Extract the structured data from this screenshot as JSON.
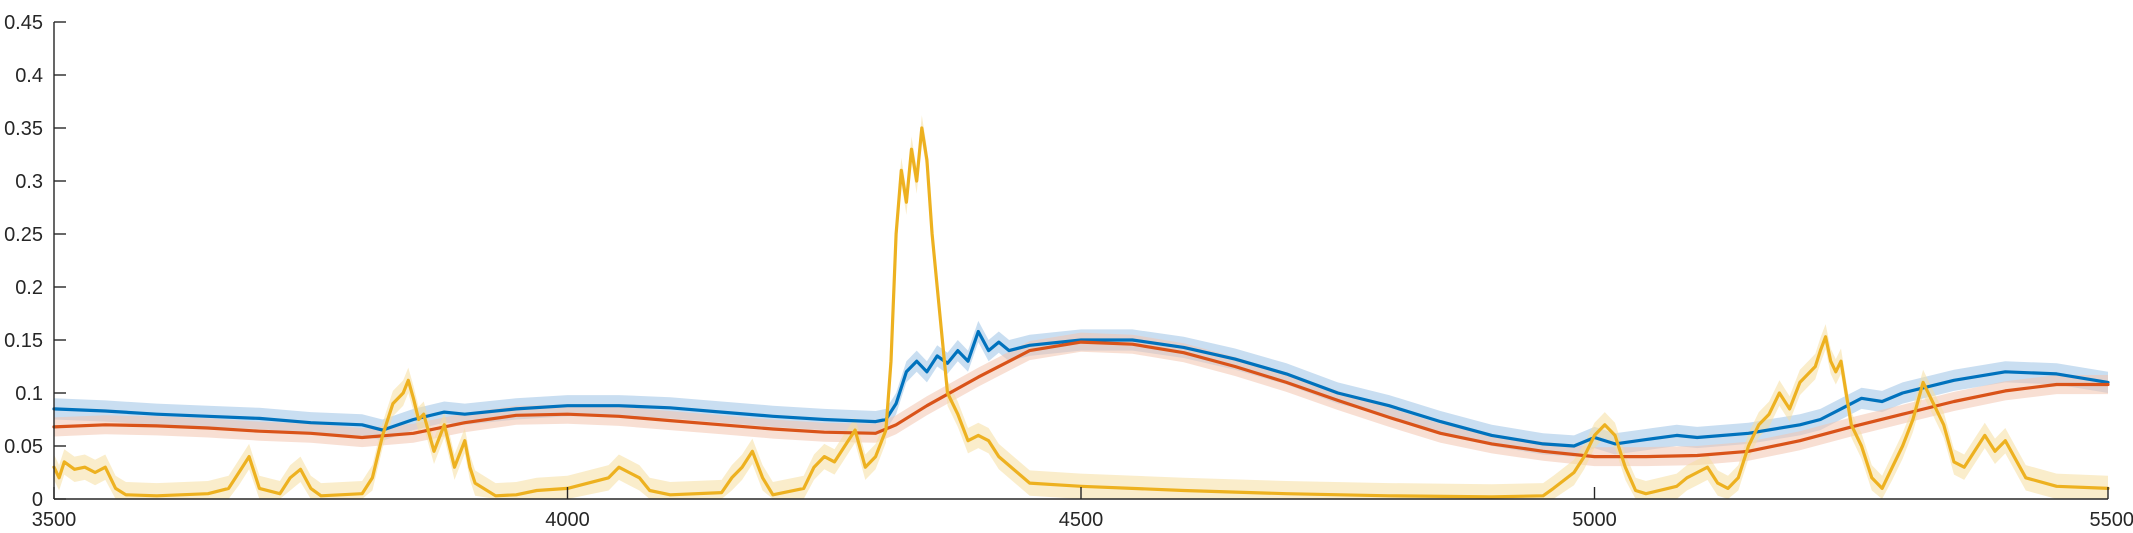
{
  "chart_data": {
    "type": "line",
    "title": "",
    "xlabel": "",
    "ylabel": "",
    "xlim": [
      3500,
      5500
    ],
    "ylim": [
      0,
      0.45
    ],
    "grid": false,
    "legend": "none",
    "x_ticks": [
      "3500",
      "4000",
      "4500",
      "5000",
      "5500"
    ],
    "y_ticks": [
      "0",
      "0.05",
      "0.1",
      "0.15",
      "0.2",
      "0.25",
      "0.3",
      "0.35",
      "0.4",
      "0.45"
    ],
    "series": [
      {
        "color": "#0072BD",
        "band_color": "#9dc3e6",
        "band_halfwidth": 0.01,
        "x": [
          3500,
          3550,
          3600,
          3650,
          3700,
          3750,
          3800,
          3820,
          3850,
          3880,
          3900,
          3950,
          4000,
          4050,
          4100,
          4150,
          4200,
          4250,
          4300,
          4310,
          4320,
          4330,
          4340,
          4350,
          4360,
          4370,
          4380,
          4390,
          4400,
          4410,
          4420,
          4430,
          4450,
          4500,
          4550,
          4600,
          4650,
          4700,
          4750,
          4800,
          4850,
          4900,
          4950,
          4980,
          5000,
          5020,
          5050,
          5080,
          5100,
          5150,
          5200,
          5220,
          5240,
          5260,
          5280,
          5300,
          5350,
          5400,
          5450,
          5500
        ],
        "y": [
          0.085,
          0.083,
          0.08,
          0.078,
          0.076,
          0.072,
          0.07,
          0.065,
          0.075,
          0.082,
          0.08,
          0.085,
          0.088,
          0.088,
          0.086,
          0.082,
          0.078,
          0.075,
          0.073,
          0.075,
          0.09,
          0.12,
          0.13,
          0.12,
          0.135,
          0.128,
          0.14,
          0.13,
          0.158,
          0.14,
          0.148,
          0.14,
          0.145,
          0.15,
          0.15,
          0.143,
          0.132,
          0.118,
          0.1,
          0.088,
          0.073,
          0.06,
          0.052,
          0.05,
          0.058,
          0.052,
          0.056,
          0.06,
          0.058,
          0.062,
          0.07,
          0.075,
          0.085,
          0.095,
          0.092,
          0.1,
          0.112,
          0.12,
          0.118,
          0.11
        ]
      },
      {
        "color": "#D95319",
        "band_color": "#f2c4ae",
        "band_halfwidth": 0.009,
        "x": [
          3500,
          3550,
          3600,
          3650,
          3700,
          3750,
          3800,
          3850,
          3900,
          3950,
          4000,
          4050,
          4100,
          4150,
          4200,
          4250,
          4300,
          4320,
          4350,
          4400,
          4450,
          4500,
          4550,
          4600,
          4650,
          4700,
          4750,
          4800,
          4850,
          4900,
          4950,
          5000,
          5050,
          5100,
          5150,
          5200,
          5250,
          5300,
          5350,
          5400,
          5450,
          5500
        ],
        "y": [
          0.068,
          0.07,
          0.069,
          0.067,
          0.064,
          0.062,
          0.058,
          0.062,
          0.072,
          0.079,
          0.08,
          0.078,
          0.074,
          0.07,
          0.066,
          0.063,
          0.062,
          0.07,
          0.088,
          0.115,
          0.14,
          0.148,
          0.146,
          0.138,
          0.125,
          0.11,
          0.093,
          0.077,
          0.062,
          0.052,
          0.045,
          0.04,
          0.04,
          0.041,
          0.045,
          0.055,
          0.068,
          0.08,
          0.092,
          0.102,
          0.108,
          0.108
        ]
      },
      {
        "color": "#EDB120",
        "band_color": "#f6dfa0",
        "band_halfwidth": 0.012,
        "x": [
          3500,
          3505,
          3510,
          3520,
          3530,
          3540,
          3550,
          3560,
          3570,
          3600,
          3650,
          3670,
          3680,
          3690,
          3700,
          3720,
          3730,
          3740,
          3750,
          3760,
          3800,
          3810,
          3820,
          3830,
          3840,
          3845,
          3850,
          3855,
          3860,
          3870,
          3880,
          3890,
          3900,
          3905,
          3910,
          3930,
          3950,
          3970,
          4000,
          4040,
          4050,
          4060,
          4070,
          4080,
          4100,
          4150,
          4160,
          4170,
          4180,
          4190,
          4200,
          4230,
          4240,
          4250,
          4260,
          4270,
          4280,
          4290,
          4300,
          4310,
          4315,
          4320,
          4325,
          4330,
          4335,
          4340,
          4345,
          4350,
          4355,
          4360,
          4370,
          4380,
          4390,
          4400,
          4410,
          4420,
          4450,
          4500,
          4600,
          4700,
          4800,
          4900,
          4950,
          4960,
          4980,
          4990,
          5000,
          5010,
          5020,
          5030,
          5040,
          5050,
          5080,
          5090,
          5100,
          5110,
          5120,
          5130,
          5140,
          5150,
          5160,
          5170,
          5180,
          5190,
          5200,
          5210,
          5215,
          5220,
          5225,
          5230,
          5235,
          5240,
          5245,
          5250,
          5260,
          5270,
          5280,
          5290,
          5300,
          5310,
          5320,
          5330,
          5340,
          5350,
          5360,
          5370,
          5380,
          5390,
          5400,
          5420,
          5450,
          5500
        ],
        "y": [
          0.03,
          0.02,
          0.035,
          0.028,
          0.03,
          0.025,
          0.03,
          0.01,
          0.004,
          0.003,
          0.005,
          0.01,
          0.025,
          0.04,
          0.01,
          0.005,
          0.02,
          0.028,
          0.01,
          0.003,
          0.005,
          0.02,
          0.06,
          0.09,
          0.1,
          0.112,
          0.095,
          0.075,
          0.08,
          0.045,
          0.07,
          0.03,
          0.055,
          0.03,
          0.015,
          0.003,
          0.004,
          0.008,
          0.01,
          0.02,
          0.03,
          0.025,
          0.02,
          0.008,
          0.004,
          0.006,
          0.02,
          0.03,
          0.045,
          0.02,
          0.004,
          0.01,
          0.03,
          0.04,
          0.035,
          0.05,
          0.065,
          0.03,
          0.04,
          0.065,
          0.13,
          0.25,
          0.31,
          0.28,
          0.33,
          0.3,
          0.35,
          0.32,
          0.25,
          0.2,
          0.1,
          0.08,
          0.055,
          0.06,
          0.055,
          0.04,
          0.015,
          0.012,
          0.008,
          0.005,
          0.003,
          0.002,
          0.003,
          0.01,
          0.025,
          0.04,
          0.06,
          0.07,
          0.06,
          0.03,
          0.008,
          0.005,
          0.012,
          0.02,
          0.025,
          0.03,
          0.015,
          0.01,
          0.02,
          0.05,
          0.07,
          0.08,
          0.1,
          0.085,
          0.11,
          0.12,
          0.125,
          0.14,
          0.153,
          0.13,
          0.12,
          0.13,
          0.1,
          0.07,
          0.05,
          0.02,
          0.01,
          0.03,
          0.05,
          0.075,
          0.11,
          0.09,
          0.07,
          0.035,
          0.03,
          0.045,
          0.06,
          0.045,
          0.055,
          0.02,
          0.012,
          0.01
        ]
      }
    ]
  }
}
